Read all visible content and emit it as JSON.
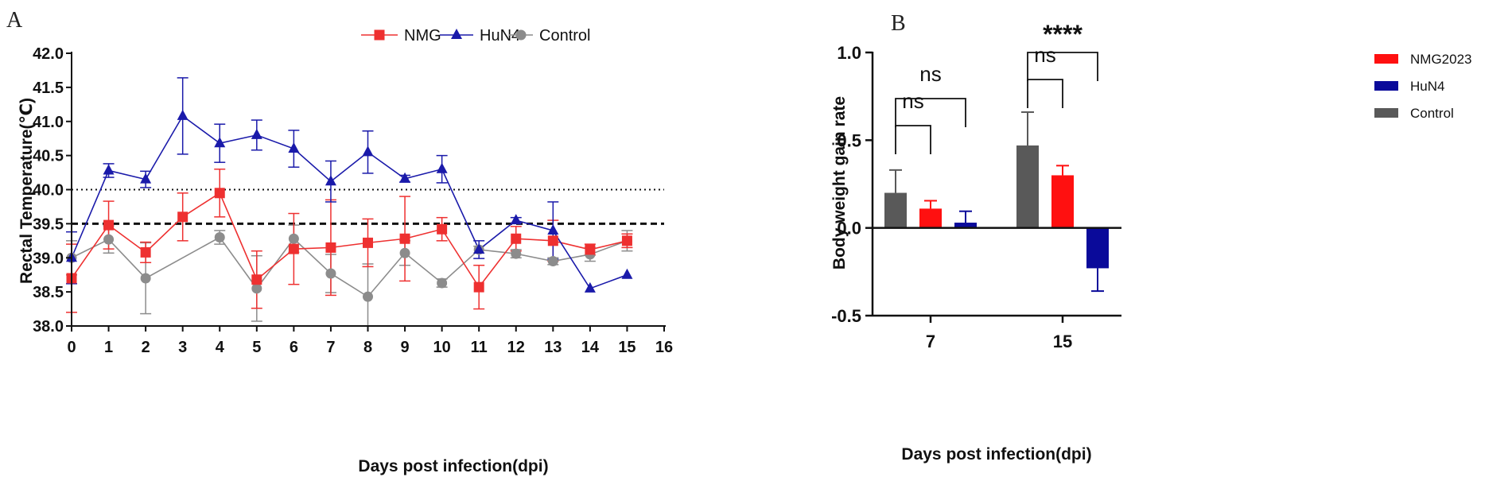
{
  "chart_data": [
    {
      "panel": "A",
      "type": "line",
      "xlabel": "Days post infection(dpi)",
      "ylabel": "Rectal Temperature(℃)",
      "xlim": [
        0,
        16
      ],
      "ylim": [
        38.0,
        42.0
      ],
      "x_ticks": [
        0,
        1,
        2,
        3,
        4,
        5,
        6,
        7,
        8,
        9,
        10,
        11,
        12,
        13,
        14,
        15,
        16
      ],
      "y_ticks": [
        "38.0",
        "38.5",
        "39.0",
        "39.5",
        "40.0",
        "40.5",
        "41.0",
        "41.5",
        "42.0"
      ],
      "reference_lines": [
        {
          "y": 40.0,
          "style": "dotted"
        },
        {
          "y": 39.5,
          "style": "dashed"
        }
      ],
      "legend": [
        "NMG",
        "HuN4",
        "Control"
      ],
      "legend_position": "top",
      "series": [
        {
          "name": "HuN4",
          "color": "#1a1aaa",
          "marker": "triangle",
          "x": [
            0,
            1,
            2,
            3,
            4,
            5,
            6,
            7,
            8,
            9,
            10,
            11,
            12,
            13,
            14,
            15
          ],
          "y": [
            39.0,
            40.28,
            40.15,
            41.08,
            40.68,
            40.8,
            40.6,
            40.12,
            40.55,
            40.16,
            40.3,
            39.12,
            39.55,
            39.4,
            38.55,
            38.75
          ],
          "err": [
            0.38,
            0.1,
            0.12,
            0.56,
            0.28,
            0.22,
            0.27,
            0.3,
            0.31,
            0.05,
            0.2,
            0.13,
            0.04,
            0.42,
            0.0,
            0.0
          ]
        },
        {
          "name": "NMG",
          "color": "#ee3030",
          "marker": "square",
          "x": [
            0,
            1,
            2,
            3,
            4,
            5,
            6,
            7,
            8,
            9,
            10,
            11,
            12,
            13,
            14,
            15
          ],
          "y": [
            38.7,
            39.48,
            39.08,
            39.6,
            39.95,
            38.68,
            39.13,
            39.15,
            39.22,
            39.28,
            39.42,
            38.57,
            39.28,
            39.25,
            39.12,
            39.25
          ],
          "err": [
            0.5,
            0.35,
            0.15,
            0.35,
            0.35,
            0.42,
            0.52,
            0.7,
            0.35,
            0.62,
            0.17,
            0.32,
            0.18,
            0.3,
            0.08,
            0.1
          ]
        },
        {
          "name": "Control",
          "color": "#8c8c8c",
          "marker": "circle",
          "x": [
            0,
            1,
            2,
            4,
            5,
            6,
            7,
            8,
            9,
            10,
            11,
            12,
            13,
            14,
            15
          ],
          "y": [
            39.0,
            39.27,
            38.7,
            39.3,
            38.55,
            39.28,
            38.77,
            38.43,
            39.07,
            38.63,
            39.12,
            39.06,
            38.95,
            39.05,
            39.25
          ],
          "err": [
            0.25,
            0.2,
            0.52,
            0.1,
            0.48,
            0.2,
            0.28,
            0.48,
            0.18,
            0.06,
            0.05,
            0.06,
            0.05,
            0.1,
            0.15
          ]
        }
      ]
    },
    {
      "panel": "B",
      "type": "bar",
      "xlabel": "Days post infection(dpi)",
      "ylabel": "Body weight gain rate",
      "categories": [
        "7",
        "15"
      ],
      "ylim": [
        -0.5,
        1.0
      ],
      "y_ticks": [
        "-0.5",
        "0.0",
        "0.5",
        "1.0"
      ],
      "legend": [
        "NMG2023",
        "HuN4",
        "Control"
      ],
      "legend_position": "right",
      "series": [
        {
          "name": "Control",
          "color": "#595959",
          "values": [
            0.2,
            0.47
          ],
          "err": [
            0.13,
            0.19
          ]
        },
        {
          "name": "NMG2023",
          "color": "#ff1010",
          "values": [
            0.11,
            0.3
          ],
          "err": [
            0.045,
            0.055
          ]
        },
        {
          "name": "HuN4",
          "color": "#0a0a9a",
          "values": [
            0.03,
            -0.23
          ],
          "err": [
            0.065,
            0.13
          ]
        }
      ],
      "annotations": [
        {
          "label": "ns",
          "group": "7",
          "between": [
            "Control",
            "NMG2023"
          ]
        },
        {
          "label": "ns",
          "group": "7",
          "between": [
            "Control",
            "HuN4"
          ]
        },
        {
          "label": "ns",
          "group": "15",
          "between": [
            "Control",
            "NMG2023"
          ]
        },
        {
          "label": "****",
          "group": "15",
          "between": [
            "Control",
            "HuN4"
          ]
        }
      ]
    }
  ],
  "panel_labels": [
    "A",
    "B"
  ]
}
